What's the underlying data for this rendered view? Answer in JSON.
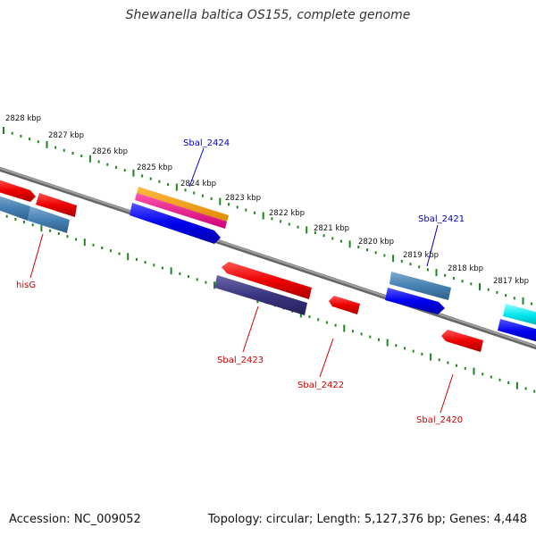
{
  "title": "Shewanella baltica OS155, complete genome",
  "footer": {
    "accession": "Accession: NC_009052",
    "summary": "Topology: circular; Length: 5,127,376 bp; Genes: 4,448"
  },
  "ruler_labels": [
    "2828 kbp",
    "2827 kbp",
    "2826 kbp",
    "2825 kbp",
    "2824 kbp",
    "2823 kbp",
    "2822 kbp",
    "2821 kbp",
    "2820 kbp",
    "2819 kbp",
    "2818 kbp",
    "2817 kbp"
  ],
  "gene_labels": {
    "sbal_2424": "Sbal_2424",
    "sbal_2421": "Sbal_2421",
    "hisG": "hisG",
    "sbal_2423": "Sbal_2423",
    "sbal_2422": "Sbal_2422",
    "sbal_2420": "Sbal_2420"
  },
  "colors": {
    "forward_label": "#0000bb",
    "reverse_label": "#cc0000",
    "tick": "#1a8a1a",
    "backbone": "#808080",
    "red": "#ee0000",
    "blue": "#0000ee",
    "steelblue": "#4682b4",
    "purple": "#3a3580",
    "orange": "#ff9900",
    "magenta": "#ee1188",
    "cyan": "#00e5ee"
  }
}
